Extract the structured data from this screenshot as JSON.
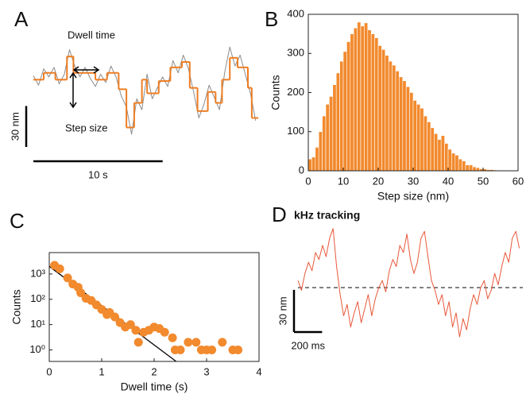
{
  "chart_data": [
    {
      "panel": "A",
      "type": "trace",
      "annotations": [
        "Dwell time",
        "Step size"
      ],
      "x_scale_bar": {
        "value": 10,
        "label": "10 s"
      },
      "y_scale_bar": {
        "value": 30,
        "label": "30 nm"
      },
      "xlim": [
        0,
        17.4
      ],
      "ylim": [
        -58,
        38
      ],
      "series": [
        {
          "color": "#8c8c8c",
          "x": [
            0,
            0.4,
            0.8,
            1.2,
            1.6,
            2.0,
            2.4,
            2.8,
            3.2,
            3.6,
            4.0,
            4.4,
            4.8,
            5.2,
            5.6,
            6.0,
            6.4,
            6.8,
            7.2,
            7.6,
            8.0,
            8.4,
            8.8,
            9.2,
            9.6,
            10.0,
            10.4,
            10.8,
            11.2,
            11.6,
            12.0,
            12.4,
            12.8,
            13.2,
            13.6,
            14.0,
            14.4,
            14.8,
            15.2,
            15.6,
            16.0,
            16.4,
            16.8,
            17.2
          ],
          "values": [
            3,
            -4,
            8,
            2,
            9,
            -3,
            4,
            22,
            10,
            2,
            9,
            1,
            -5,
            4,
            -2,
            10,
            2,
            -12,
            -20,
            -40,
            -14,
            -22,
            4,
            -14,
            -6,
            2,
            -5,
            14,
            5,
            18,
            8,
            -9,
            -28,
            -18,
            -4,
            -13,
            -22,
            5,
            24,
            10,
            18,
            4,
            -10,
            -30
          ]
        }
      ],
      "steps": {
        "color": "#ee7d22",
        "edges": [
          0,
          0.8,
          1.7,
          2.6,
          3.1,
          4.8,
          5.7,
          6.6,
          7.2,
          7.8,
          8.4,
          8.8,
          9.7,
          10.6,
          11.5,
          12.1,
          12.7,
          13.5,
          14.1,
          14.6,
          15.2,
          15.8,
          16.6,
          16.9,
          17.4
        ],
        "values": [
          0,
          5,
          0,
          17,
          5,
          0,
          5,
          -7,
          -35,
          -17,
          0,
          -10,
          -1,
          9,
          13,
          -6,
          -23,
          -9,
          -17,
          0,
          16,
          9,
          -6,
          -28
        ]
      }
    },
    {
      "panel": "B",
      "type": "histogram",
      "xlabel": "Step size (nm)",
      "ylabel": "Counts",
      "color": "#f28a2e",
      "bins": [
        0,
        1,
        2,
        3,
        4,
        5,
        6,
        7,
        8,
        9,
        10,
        11,
        12,
        13,
        14,
        15,
        16,
        17,
        18,
        19,
        20,
        21,
        22,
        23,
        24,
        25,
        26,
        27,
        28,
        29,
        30,
        31,
        32,
        33,
        34,
        35,
        36,
        37,
        38,
        39,
        40,
        41,
        42,
        43,
        44,
        45,
        46,
        47,
        48,
        49,
        50,
        51,
        52,
        53,
        54,
        55
      ],
      "counts": [
        30,
        35,
        60,
        100,
        140,
        170,
        190,
        220,
        250,
        280,
        305,
        330,
        350,
        365,
        380,
        370,
        378,
        360,
        350,
        340,
        320,
        310,
        295,
        280,
        270,
        255,
        240,
        230,
        215,
        200,
        180,
        170,
        160,
        140,
        125,
        110,
        95,
        80,
        90,
        70,
        55,
        45,
        40,
        30,
        25,
        15,
        15,
        10,
        8,
        5,
        5,
        3,
        3,
        2,
        1
      ],
      "xlim": [
        0,
        60
      ],
      "xticks": [
        0,
        10,
        20,
        30,
        40,
        50,
        60
      ],
      "ylim": [
        0,
        400
      ],
      "yticks": [
        0,
        100,
        200,
        300,
        400
      ]
    },
    {
      "panel": "C",
      "type": "scatter",
      "xlabel": "Dwell time (s)",
      "ylabel": "Counts",
      "log_y": true,
      "color": "#f28a2e",
      "x": [
        0.1,
        0.2,
        0.35,
        0.45,
        0.55,
        0.6,
        0.7,
        0.8,
        0.9,
        1.0,
        1.1,
        1.15,
        1.25,
        1.35,
        1.45,
        1.55,
        1.65,
        1.7,
        1.8,
        1.9,
        2.0,
        2.1,
        2.2,
        2.35,
        2.4,
        2.5,
        2.65,
        2.8,
        2.9,
        3.0,
        3.1,
        3.3,
        3.5,
        3.6
      ],
      "values": [
        2200,
        1600,
        700,
        400,
        300,
        180,
        110,
        90,
        60,
        40,
        25,
        30,
        20,
        12,
        8,
        10,
        6,
        2,
        5,
        6,
        8,
        7,
        5,
        3,
        1,
        1,
        2,
        2,
        1,
        1,
        1,
        2,
        1,
        1
      ],
      "fit": {
        "color": "#000000",
        "x": [
          0,
          2.42
        ],
        "values": [
          2000,
          0.35
        ]
      },
      "xlim": [
        0,
        4
      ],
      "xticks": [
        0,
        1,
        2,
        3,
        4
      ],
      "ylim": [
        0.35,
        7000
      ],
      "yticks": [
        {
          "value": 1,
          "label": "10⁰"
        },
        {
          "value": 10,
          "label": "10¹"
        },
        {
          "value": 100,
          "label": "10²"
        },
        {
          "value": 1000,
          "label": "10³"
        }
      ]
    },
    {
      "panel": "D",
      "type": "trace",
      "title": "kHz tracking",
      "reference_line": 0,
      "x_scale_bar": {
        "value": 200,
        "label": "200 ms"
      },
      "y_scale_bar": {
        "value": 30,
        "label": "30 nm"
      },
      "xlim": [
        0,
        1600
      ],
      "ylim": [
        -44,
        43.5
      ],
      "series": [
        {
          "color": "#e8583a",
          "x": [
            0,
            25,
            50,
            75,
            100,
            125,
            150,
            175,
            200,
            225,
            250,
            275,
            300,
            325,
            350,
            375,
            400,
            425,
            450,
            475,
            500,
            525,
            550,
            575,
            600,
            625,
            650,
            675,
            700,
            725,
            750,
            775,
            800,
            825,
            850,
            875,
            900,
            925,
            950,
            975,
            1000,
            1025,
            1050,
            1075,
            1100,
            1125,
            1150,
            1175,
            1200,
            1225,
            1250,
            1275,
            1300,
            1325,
            1350,
            1375,
            1400,
            1425,
            1450,
            1475,
            1500,
            1525,
            1550,
            1575
          ],
          "values": [
            5,
            -2,
            10,
            18,
            12,
            25,
            20,
            30,
            22,
            35,
            42,
            15,
            -5,
            -20,
            -12,
            -28,
            -18,
            -10,
            -25,
            -15,
            -5,
            -20,
            -8,
            0,
            5,
            -3,
            12,
            20,
            15,
            30,
            25,
            38,
            20,
            10,
            18,
            35,
            40,
            22,
            5,
            -2,
            -12,
            -5,
            -20,
            -10,
            -28,
            -18,
            -35,
            -22,
            -30,
            -15,
            -5,
            -12,
            0,
            5,
            -8,
            -2,
            10,
            2,
            15,
            25,
            18,
            35,
            40,
            28
          ]
        }
      ]
    }
  ]
}
